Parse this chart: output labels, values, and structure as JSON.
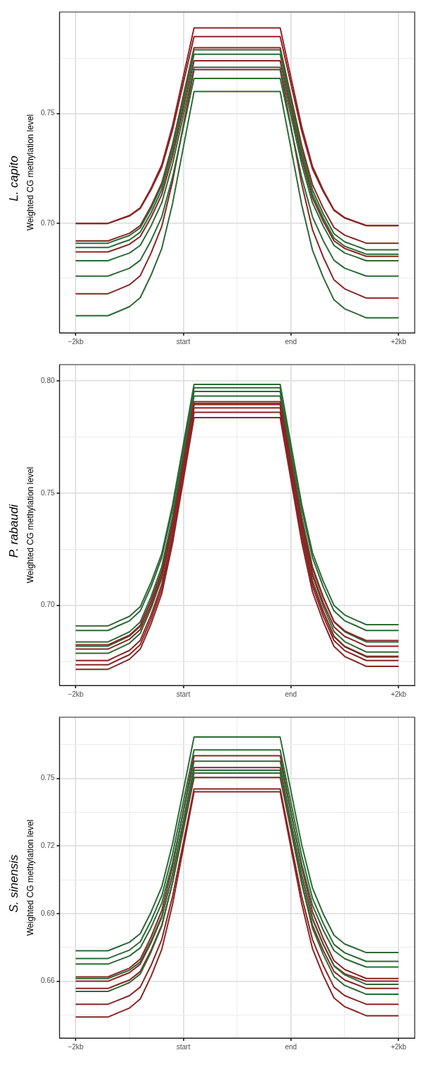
{
  "chart_data": [
    {
      "type": "line",
      "title": "L. capito",
      "ylabel": "Weighted CG methylation level",
      "marker": "none",
      "grid": true,
      "categories": [
        "−2kb",
        null,
        null,
        null,
        null,
        null,
        null,
        null,
        null,
        null,
        "start",
        null,
        null,
        null,
        null,
        null,
        null,
        null,
        null,
        null,
        "end",
        null,
        null,
        null,
        null,
        null,
        null,
        null,
        null,
        null,
        "+2kb"
      ],
      "ylim": [
        0.6502,
        0.7962
      ],
      "yticks": [
        {
          "value": 0.675,
          "label": null
        },
        {
          "value": 0.7,
          "label": "0.70"
        },
        {
          "value": 0.725,
          "label": null
        },
        {
          "value": 0.75,
          "label": "0.75"
        },
        {
          "value": 0.775,
          "label": null
        }
      ],
      "series": [
        {
          "color": "#2d6a36",
          "values": [
            0.691,
            0.691,
            0.691,
            0.691,
            0.6928,
            0.6945,
            0.698,
            0.7068,
            0.7174,
            0.735,
            0.757,
            0.779,
            0.779,
            0.779,
            0.779,
            0.779,
            0.779,
            0.779,
            0.779,
            0.779,
            0.7563,
            0.7335,
            0.7153,
            0.7044,
            0.6953,
            0.6916,
            0.6898,
            0.688,
            0.688,
            0.688,
            0.688
          ]
        },
        {
          "color": "#2d6a36",
          "values": [
            0.689,
            0.689,
            0.689,
            0.689,
            0.6908,
            0.6925,
            0.696,
            0.7048,
            0.7154,
            0.733,
            0.755,
            0.777,
            0.777,
            0.777,
            0.777,
            0.777,
            0.777,
            0.777,
            0.777,
            0.777,
            0.7543,
            0.7315,
            0.7133,
            0.7024,
            0.6933,
            0.6896,
            0.6878,
            0.686,
            0.686,
            0.686,
            0.686
          ]
        },
        {
          "color": "#2d6a36",
          "values": [
            0.683,
            0.683,
            0.683,
            0.683,
            0.6848,
            0.6865,
            0.69,
            0.6988,
            0.7094,
            0.727,
            0.749,
            0.771,
            0.771,
            0.771,
            0.771,
            0.771,
            0.771,
            0.771,
            0.771,
            0.771,
            0.749,
            0.727,
            0.7094,
            0.6988,
            0.69,
            0.6865,
            0.6848,
            0.683,
            0.683,
            0.683,
            0.683
          ]
        },
        {
          "color": "#2d6a36",
          "values": [
            0.676,
            0.676,
            0.676,
            0.676,
            0.6778,
            0.6796,
            0.6832,
            0.6922,
            0.703,
            0.721,
            0.7435,
            0.766,
            0.766,
            0.766,
            0.766,
            0.766,
            0.766,
            0.766,
            0.766,
            0.766,
            0.7435,
            0.721,
            0.703,
            0.6922,
            0.6832,
            0.6796,
            0.6778,
            0.676,
            0.676,
            0.676,
            0.676
          ]
        },
        {
          "color": "#2d6a36",
          "values": [
            0.658,
            0.658,
            0.658,
            0.658,
            0.66,
            0.6621,
            0.6662,
            0.6764,
            0.6886,
            0.709,
            0.7345,
            0.76,
            0.76,
            0.76,
            0.76,
            0.76,
            0.76,
            0.76,
            0.76,
            0.76,
            0.7343,
            0.7085,
            0.6879,
            0.6755,
            0.6652,
            0.6611,
            0.6591,
            0.657,
            0.657,
            0.657,
            0.657
          ]
        },
        {
          "color": "#8b2525",
          "values": [
            0.7,
            0.7,
            0.7,
            0.7,
            0.7018,
            0.7036,
            0.7071,
            0.716,
            0.7267,
            0.7445,
            0.7668,
            0.789,
            0.789,
            0.789,
            0.789,
            0.789,
            0.789,
            0.789,
            0.789,
            0.789,
            0.7665,
            0.744,
            0.726,
            0.7152,
            0.7062,
            0.7026,
            0.7008,
            0.699,
            0.699,
            0.699,
            0.699
          ]
        },
        {
          "color": "#8b2525",
          "values": [
            0.7,
            0.7,
            0.7,
            0.7,
            0.7017,
            0.7034,
            0.7068,
            0.7153,
            0.7255,
            0.7425,
            0.7638,
            0.785,
            0.785,
            0.785,
            0.785,
            0.785,
            0.785,
            0.785,
            0.785,
            0.785,
            0.7635,
            0.742,
            0.7248,
            0.7145,
            0.7059,
            0.7024,
            0.7007,
            0.699,
            0.699,
            0.699,
            0.699
          ]
        },
        {
          "color": "#8b2525",
          "values": [
            0.692,
            0.692,
            0.692,
            0.692,
            0.6938,
            0.6955,
            0.699,
            0.7078,
            0.7184,
            0.736,
            0.758,
            0.78,
            0.78,
            0.78,
            0.78,
            0.78,
            0.78,
            0.78,
            0.78,
            0.78,
            0.7578,
            0.7355,
            0.7177,
            0.707,
            0.6981,
            0.6946,
            0.6928,
            0.691,
            0.691,
            0.691,
            0.691
          ]
        },
        {
          "color": "#8b2525",
          "values": [
            0.687,
            0.687,
            0.687,
            0.687,
            0.6887,
            0.6905,
            0.694,
            0.7027,
            0.7131,
            0.7305,
            0.7523,
            0.774,
            0.774,
            0.774,
            0.774,
            0.774,
            0.774,
            0.774,
            0.774,
            0.774,
            0.7518,
            0.7295,
            0.7117,
            0.701,
            0.6921,
            0.6886,
            0.6868,
            0.685,
            0.685,
            0.685,
            0.685
          ]
        },
        {
          "color": "#8b2525",
          "values": [
            0.668,
            0.668,
            0.668,
            0.668,
            0.67,
            0.6721,
            0.6762,
            0.6864,
            0.6986,
            0.719,
            0.7445,
            0.77,
            0.77,
            0.77,
            0.77,
            0.77,
            0.77,
            0.77,
            0.77,
            0.77,
            0.744,
            0.718,
            0.6972,
            0.6847,
            0.6743,
            0.6702,
            0.6681,
            0.666,
            0.666,
            0.666,
            0.666
          ]
        }
      ]
    },
    {
      "type": "line",
      "title": "P. rabaudi",
      "ylabel": "Weighted CG methylation level",
      "marker": "none",
      "grid": true,
      "categories": [
        "−2kb",
        null,
        null,
        null,
        null,
        null,
        null,
        null,
        null,
        null,
        "start",
        null,
        null,
        null,
        null,
        null,
        null,
        null,
        null,
        null,
        "end",
        null,
        null,
        null,
        null,
        null,
        null,
        null,
        null,
        null,
        "+2kb"
      ],
      "ylim": [
        0.6643,
        0.8073
      ],
      "yticks": [
        {
          "value": 0.675,
          "label": null
        },
        {
          "value": 0.7,
          "label": "0.70"
        },
        {
          "value": 0.725,
          "label": null
        },
        {
          "value": 0.75,
          "label": "0.75"
        },
        {
          "value": 0.775,
          "label": null
        },
        {
          "value": 0.8,
          "label": "0.80"
        }
      ],
      "series": [
        {
          "color": "#8b2525",
          "values": [
            0.6824,
            0.6824,
            0.6824,
            0.6824,
            0.6846,
            0.6867,
            0.6911,
            0.7019,
            0.7149,
            0.7366,
            0.7637,
            0.7908,
            0.7908,
            0.7908,
            0.7908,
            0.7908,
            0.7908,
            0.7908,
            0.7908,
            0.7908,
            0.7642,
            0.7376,
            0.7163,
            0.7035,
            0.6928,
            0.6886,
            0.6864,
            0.6843,
            0.6843,
            0.6843,
            0.6843
          ]
        },
        {
          "color": "#8b2525",
          "values": [
            0.6805,
            0.6805,
            0.6805,
            0.6805,
            0.6827,
            0.6849,
            0.6892,
            0.7001,
            0.7132,
            0.735,
            0.7623,
            0.7895,
            0.7895,
            0.7895,
            0.7895,
            0.7895,
            0.7895,
            0.7895,
            0.7895,
            0.7895,
            0.7626,
            0.7357,
            0.7141,
            0.7012,
            0.6904,
            0.6861,
            0.684,
            0.6818,
            0.6818,
            0.6818,
            0.6818
          ]
        },
        {
          "color": "#8b2525",
          "values": [
            0.6754,
            0.6754,
            0.6754,
            0.6754,
            0.6777,
            0.6799,
            0.6844,
            0.6957,
            0.7092,
            0.7317,
            0.7599,
            0.788,
            0.788,
            0.788,
            0.788,
            0.788,
            0.788,
            0.788,
            0.788,
            0.788,
            0.7603,
            0.7327,
            0.7105,
            0.6972,
            0.6862,
            0.6817,
            0.6795,
            0.6773,
            0.6773,
            0.6773,
            0.6773
          ]
        },
        {
          "color": "#8b2525",
          "values": [
            0.6735,
            0.6735,
            0.6735,
            0.6735,
            0.6758,
            0.678,
            0.6825,
            0.6938,
            0.7073,
            0.7298,
            0.7579,
            0.786,
            0.786,
            0.786,
            0.786,
            0.786,
            0.786,
            0.786,
            0.786,
            0.786,
            0.7584,
            0.7307,
            0.7086,
            0.6953,
            0.6843,
            0.6798,
            0.6776,
            0.6754,
            0.6754,
            0.6754,
            0.6754
          ]
        },
        {
          "color": "#8b2525",
          "values": [
            0.6715,
            0.6715,
            0.6715,
            0.6715,
            0.6737,
            0.676,
            0.6805,
            0.6917,
            0.7052,
            0.7276,
            0.7557,
            0.7837,
            0.7837,
            0.7837,
            0.7837,
            0.7837,
            0.7837,
            0.7837,
            0.7837,
            0.7837,
            0.756,
            0.7283,
            0.7061,
            0.6928,
            0.6817,
            0.6772,
            0.675,
            0.6728,
            0.6728,
            0.6728,
            0.6728
          ]
        },
        {
          "color": "#2d6a36",
          "values": [
            0.6908,
            0.6908,
            0.6908,
            0.6908,
            0.693,
            0.6951,
            0.6994,
            0.7102,
            0.7231,
            0.7447,
            0.7716,
            0.7985,
            0.7985,
            0.7985,
            0.7985,
            0.7985,
            0.7985,
            0.7985,
            0.7985,
            0.7985,
            0.7717,
            0.745,
            0.7235,
            0.7107,
            0.7,
            0.6957,
            0.6935,
            0.6914,
            0.6914,
            0.6914,
            0.6914
          ]
        },
        {
          "color": "#2d6a36",
          "values": [
            0.6888,
            0.6888,
            0.6888,
            0.6888,
            0.691,
            0.6931,
            0.6975,
            0.7083,
            0.7213,
            0.7429,
            0.77,
            0.797,
            0.797,
            0.797,
            0.797,
            0.797,
            0.797,
            0.797,
            0.797,
            0.797,
            0.77,
            0.7429,
            0.7213,
            0.7083,
            0.6975,
            0.6931,
            0.691,
            0.6888,
            0.6888,
            0.6888,
            0.6888
          ]
        },
        {
          "color": "#2d6a36",
          "values": [
            0.6837,
            0.6837,
            0.6837,
            0.6837,
            0.6859,
            0.6882,
            0.6926,
            0.7038,
            0.7172,
            0.7395,
            0.7674,
            0.7953,
            0.7953,
            0.7953,
            0.7953,
            0.7953,
            0.7953,
            0.7953,
            0.7953,
            0.7953,
            0.7674,
            0.7395,
            0.7172,
            0.7038,
            0.6926,
            0.6882,
            0.6859,
            0.6837,
            0.6837,
            0.6837,
            0.6837
          ]
        },
        {
          "color": "#2d6a36",
          "values": [
            0.6818,
            0.6818,
            0.6818,
            0.6818,
            0.684,
            0.6863,
            0.6907,
            0.7019,
            0.7153,
            0.7376,
            0.7654,
            0.7933,
            0.7933,
            0.7933,
            0.7933,
            0.7933,
            0.7933,
            0.7933,
            0.7933,
            0.7933,
            0.7648,
            0.7363,
            0.7134,
            0.6997,
            0.6883,
            0.6838,
            0.6815,
            0.6792,
            0.6792,
            0.6792,
            0.6792
          ]
        },
        {
          "color": "#2d6a36",
          "values": [
            0.6786,
            0.6786,
            0.6786,
            0.6786,
            0.6808,
            0.6831,
            0.6875,
            0.6987,
            0.712,
            0.7343,
            0.7622,
            0.79,
            0.79,
            0.79,
            0.79,
            0.79,
            0.79,
            0.79,
            0.79,
            0.79,
            0.7618,
            0.7335,
            0.7109,
            0.6973,
            0.686,
            0.6815,
            0.6793,
            0.677,
            0.677,
            0.677,
            0.677
          ]
        }
      ]
    },
    {
      "type": "line",
      "title": "S. sinensis",
      "ylabel": "Weighted CG methylation level",
      "marker": "none",
      "grid": true,
      "categories": [
        "−2kb",
        null,
        null,
        null,
        null,
        null,
        null,
        null,
        null,
        null,
        "start",
        null,
        null,
        null,
        null,
        null,
        null,
        null,
        null,
        null,
        "end",
        null,
        null,
        null,
        null,
        null,
        null,
        null,
        null,
        null,
        "+2kb"
      ],
      "ylim": [
        0.6348,
        0.7771
      ],
      "yticks": [
        {
          "value": 0.645,
          "label": null
        },
        {
          "value": 0.66,
          "label": "0.66"
        },
        {
          "value": 0.675,
          "label": null
        },
        {
          "value": 0.69,
          "label": "0.69"
        },
        {
          "value": 0.705,
          "label": null
        },
        {
          "value": 0.72,
          "label": "0.72"
        },
        {
          "value": 0.735,
          "label": null
        },
        {
          "value": 0.75,
          "label": "0.75"
        },
        {
          "value": 0.765,
          "label": null
        }
      ],
      "series": [
        {
          "color": "#2d6a36",
          "values": [
            0.6735,
            0.6735,
            0.6735,
            0.6735,
            0.6754,
            0.6773,
            0.6811,
            0.6906,
            0.7019,
            0.7209,
            0.7446,
            0.7683,
            0.7683,
            0.7683,
            0.7683,
            0.7683,
            0.7683,
            0.7683,
            0.7683,
            0.7683,
            0.7444,
            0.7205,
            0.7014,
            0.6899,
            0.6804,
            0.6765,
            0.6746,
            0.6727,
            0.6727,
            0.6727,
            0.6727
          ]
        },
        {
          "color": "#2d6a36",
          "values": [
            0.6701,
            0.6701,
            0.6701,
            0.6701,
            0.672,
            0.6738,
            0.6775,
            0.6868,
            0.6979,
            0.7164,
            0.7395,
            0.7626,
            0.7626,
            0.7626,
            0.7626,
            0.7626,
            0.7626,
            0.7626,
            0.7626,
            0.7626,
            0.7392,
            0.7157,
            0.6969,
            0.6857,
            0.6763,
            0.6726,
            0.6707,
            0.6688,
            0.6688,
            0.6688,
            0.6688
          ]
        },
        {
          "color": "#2d6a36",
          "values": [
            0.6676,
            0.6676,
            0.6676,
            0.6676,
            0.6694,
            0.6712,
            0.6748,
            0.6838,
            0.6946,
            0.7126,
            0.7351,
            0.7576,
            0.7576,
            0.7576,
            0.7576,
            0.7576,
            0.7576,
            0.7576,
            0.7576,
            0.7576,
            0.7348,
            0.712,
            0.6937,
            0.6827,
            0.6736,
            0.67,
            0.6681,
            0.6663,
            0.6663,
            0.6663,
            0.6663
          ]
        },
        {
          "color": "#2d6a36",
          "values": [
            0.6612,
            0.6612,
            0.6612,
            0.6612,
            0.6631,
            0.6649,
            0.6686,
            0.6778,
            0.6889,
            0.7074,
            0.7305,
            0.7536,
            0.7536,
            0.7536,
            0.7536,
            0.7536,
            0.7536,
            0.7536,
            0.7536,
            0.7536,
            0.73,
            0.7065,
            0.6876,
            0.6763,
            0.6668,
            0.6628,
            0.6607,
            0.6586,
            0.6586,
            0.6586,
            0.6586
          ]
        },
        {
          "color": "#2d6a36",
          "values": [
            0.6555,
            0.6555,
            0.6555,
            0.6555,
            0.6574,
            0.6594,
            0.6632,
            0.6729,
            0.6845,
            0.7039,
            0.7281,
            0.7523,
            0.7523,
            0.7523,
            0.7523,
            0.7523,
            0.7523,
            0.7523,
            0.7523,
            0.7523,
            0.7278,
            0.7033,
            0.6836,
            0.6719,
            0.6621,
            0.6581,
            0.6562,
            0.6542,
            0.6542,
            0.6542,
            0.6542
          ]
        },
        {
          "color": "#8b2525",
          "values": [
            0.6619,
            0.6619,
            0.6619,
            0.6619,
            0.6639,
            0.6658,
            0.6698,
            0.6796,
            0.6913,
            0.711,
            0.7355,
            0.76,
            0.76,
            0.76,
            0.76,
            0.76,
            0.76,
            0.76,
            0.76,
            0.76,
            0.7353,
            0.7106,
            0.6908,
            0.679,
            0.6691,
            0.6652,
            0.6632,
            0.6612,
            0.6612,
            0.6612,
            0.6612
          ]
        },
        {
          "color": "#8b2525",
          "values": [
            0.66,
            0.66,
            0.66,
            0.66,
            0.6619,
            0.6638,
            0.6676,
            0.6771,
            0.6884,
            0.7074,
            0.7311,
            0.7548,
            0.7548,
            0.7548,
            0.7548,
            0.7548,
            0.7548,
            0.7548,
            0.7548,
            0.7548,
            0.7309,
            0.7071,
            0.688,
            0.6765,
            0.6669,
            0.6633,
            0.6616,
            0.66,
            0.66,
            0.66,
            0.66
          ]
        },
        {
          "color": "#8b2525",
          "values": [
            0.6568,
            0.6568,
            0.6568,
            0.6568,
            0.6587,
            0.6605,
            0.6643,
            0.6737,
            0.6849,
            0.7036,
            0.727,
            0.7504,
            0.7504,
            0.7504,
            0.7504,
            0.7504,
            0.7504,
            0.7504,
            0.7504,
            0.7504,
            0.727,
            0.7036,
            0.6849,
            0.6737,
            0.6643,
            0.6605,
            0.6587,
            0.6568,
            0.6568,
            0.6568,
            0.6568
          ]
        },
        {
          "color": "#8b2525",
          "values": [
            0.6498,
            0.6498,
            0.6498,
            0.6498,
            0.6517,
            0.6536,
            0.6574,
            0.667,
            0.6785,
            0.6976,
            0.7214,
            0.7453,
            0.7453,
            0.7453,
            0.7453,
            0.7453,
            0.7453,
            0.7453,
            0.7453,
            0.7453,
            0.7214,
            0.6976,
            0.6785,
            0.667,
            0.6574,
            0.6536,
            0.6517,
            0.6498,
            0.6498,
            0.6498,
            0.6498
          ]
        },
        {
          "color": "#8b2525",
          "values": [
            0.6441,
            0.6441,
            0.6441,
            0.6441,
            0.6461,
            0.6481,
            0.6521,
            0.6621,
            0.6741,
            0.6941,
            0.719,
            0.744,
            0.744,
            0.744,
            0.744,
            0.744,
            0.744,
            0.744,
            0.744,
            0.744,
            0.7192,
            0.6944,
            0.6745,
            0.6626,
            0.6526,
            0.6487,
            0.6467,
            0.6447,
            0.6447,
            0.6447,
            0.6447
          ]
        }
      ]
    }
  ]
}
